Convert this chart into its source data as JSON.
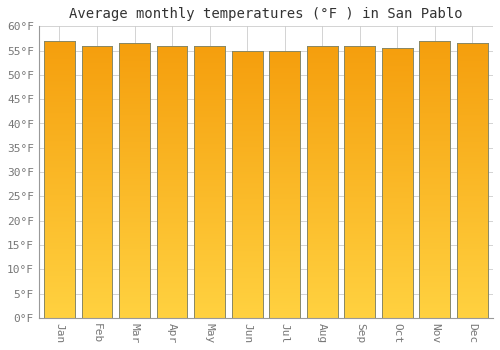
{
  "title": "Average monthly temperatures (°F ) in San Pablo",
  "months": [
    "Jan",
    "Feb",
    "Mar",
    "Apr",
    "May",
    "Jun",
    "Jul",
    "Aug",
    "Sep",
    "Oct",
    "Nov",
    "Dec"
  ],
  "values": [
    57,
    56,
    56.5,
    56,
    56,
    55,
    55,
    56,
    56,
    55.5,
    57,
    56.5
  ],
  "ylim": [
    0,
    60
  ],
  "yticks": [
    0,
    5,
    10,
    15,
    20,
    25,
    30,
    35,
    40,
    45,
    50,
    55,
    60
  ],
  "bar_color_top": "#F5A000",
  "bar_color_bottom": "#FFD060",
  "bar_edge_color": "#888866",
  "background_color": "#FFFFFF",
  "plot_bg_color": "#FFFFFF",
  "grid_color": "#CCCCCC",
  "title_fontsize": 10,
  "tick_fontsize": 8,
  "tick_color": "#777777",
  "title_color": "#333333",
  "bar_width": 0.82
}
